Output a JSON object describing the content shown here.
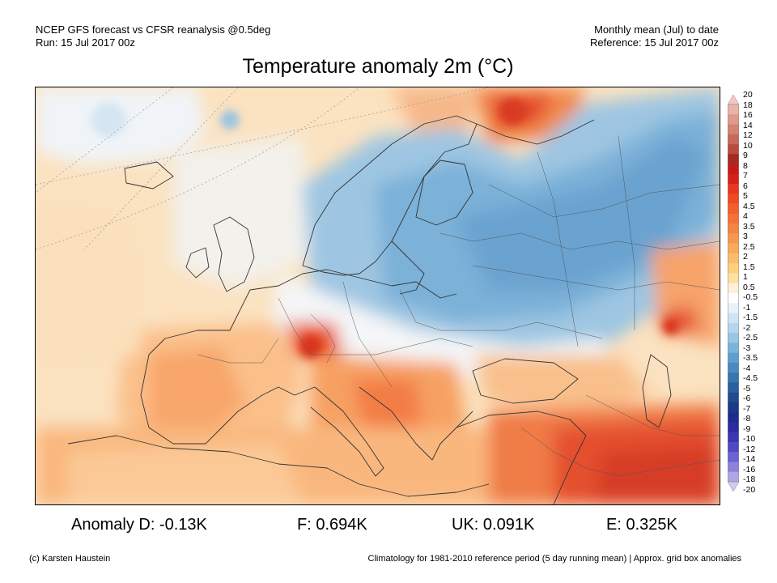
{
  "header": {
    "left_line1": "NCEP GFS forecast vs CFSR reanalysis @0.5deg",
    "left_line2": "Run: 15 Jul 2017 00z",
    "right_line1": "Monthly mean (Jul) to date",
    "right_line2": "Reference: 15 Jul 2017 00z"
  },
  "title": "Temperature anomaly 2m (°C)",
  "colorbar": {
    "levels": [
      "20",
      "18",
      "16",
      "14",
      "12",
      "10",
      "9",
      "8",
      "7",
      "6",
      "5",
      "4.5",
      "4",
      "3.5",
      "3",
      "2.5",
      "2",
      "1.5",
      "1",
      "0.5",
      "-0.5",
      "-1",
      "-1.5",
      "-2",
      "-2.5",
      "-3",
      "-3.5",
      "-4",
      "-4.5",
      "-5",
      "-6",
      "-7",
      "-8",
      "-9",
      "-10",
      "-12",
      "-14",
      "-16",
      "-18",
      "-20"
    ],
    "colors": [
      "#f2c9c0",
      "#eab3a8",
      "#e09a8c",
      "#d58272",
      "#c8695a",
      "#b84c3f",
      "#a52a24",
      "#c41c18",
      "#d8201a",
      "#e8361e",
      "#ef4a24",
      "#f25e2c",
      "#f47236",
      "#f58442",
      "#f7984e",
      "#f9ab5c",
      "#fbbd6c",
      "#fcd07e",
      "#fde1a0",
      "#fff0d8",
      "#ffffff",
      "#e8f2fa",
      "#cfe5f4",
      "#b4d6ec",
      "#98c6e4",
      "#7bb3da",
      "#5f9fce",
      "#4a8ac0",
      "#3975b0",
      "#2b5fa0",
      "#214a90",
      "#1a3a85",
      "#1e2c90",
      "#2a2ca0",
      "#3a36b4",
      "#5048c4",
      "#6c62d2",
      "#8c82dc",
      "#aea6e6",
      "#d0caf0"
    ]
  },
  "anomalies": {
    "d": "Anomaly D: -0.13K",
    "f": "F: 0.694K",
    "uk": "UK: 0.091K",
    "e": "E: 0.325K"
  },
  "footer": {
    "left": "(c) Karsten Haustein",
    "right": "Climatology for 1981-2010 reference period (5 day running mean) | Approx. grid box anomalies"
  }
}
